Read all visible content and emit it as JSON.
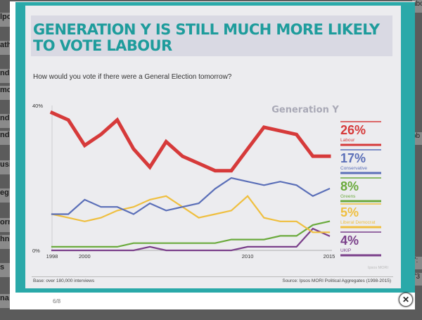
{
  "background": {
    "left_snippets": [
      "lpo",
      "ath",
      "nd",
      "mo",
      "nd",
      "nde",
      "usi",
      "eg",
      "orn",
      "hn",
      "s",
      "na"
    ],
    "right_snippets": [
      "abo",
      "ob",
      "7:",
      "73"
    ]
  },
  "slide": {
    "title_line1": "GENERATION Y IS STILL MUCH MORE LIKELY",
    "title_line2": "TO VOTE LABOUR",
    "question": "How would you vote if there were a General Election tomorrow?",
    "base_note": "Base: over 180,000 interviews",
    "source_note": "Source: Ipsos MORI Political Aggregates (1998-2015)",
    "watermark": "Ipsos MORI",
    "accent_color": "#1e9c9c"
  },
  "chart_data": {
    "type": "line",
    "title": "Generation Y",
    "y_tick_labels": [
      "40%",
      "0%"
    ],
    "x_tick_labels": [
      "1998",
      "2000",
      "2010",
      "2015"
    ],
    "ylim": [
      0,
      40
    ],
    "xlim": [
      1998,
      2015
    ],
    "x": [
      1998,
      1999,
      2000,
      2001,
      2002,
      2003,
      2004,
      2005,
      2006,
      2007,
      2008,
      2009,
      2010,
      2011,
      2012,
      2013,
      2014,
      2015
    ],
    "series": [
      {
        "name": "Labour",
        "value_label": "26%",
        "color": "#d63a3a",
        "values": [
          38,
          36,
          29,
          32,
          36,
          28,
          23,
          30,
          26,
          24,
          22,
          22,
          28,
          34,
          33,
          32,
          26,
          26
        ]
      },
      {
        "name": "Conservative",
        "value_label": "17%",
        "color": "#5b6fb8",
        "values": [
          10,
          10,
          14,
          12,
          12,
          10,
          13,
          11,
          12,
          13,
          17,
          20,
          19,
          18,
          19,
          18,
          15,
          17
        ]
      },
      {
        "name": "Greens",
        "value_label": "8%",
        "color": "#6aaa3c",
        "values": [
          1,
          1,
          1,
          1,
          1,
          2,
          2,
          2,
          2,
          2,
          2,
          3,
          3,
          3,
          4,
          4,
          7,
          8
        ]
      },
      {
        "name": "Liberal Democrat",
        "value_label": "5%",
        "color": "#efbf3f",
        "values": [
          10,
          9,
          8,
          9,
          11,
          12,
          14,
          15,
          12,
          9,
          10,
          11,
          15,
          9,
          8,
          8,
          5,
          5
        ]
      },
      {
        "name": "UKIP",
        "value_label": "4%",
        "color": "#7a3f8a",
        "values": [
          0,
          0,
          0,
          0,
          0,
          0,
          1,
          0,
          0,
          0,
          0,
          0,
          1,
          1,
          1,
          1,
          6,
          4
        ]
      }
    ]
  },
  "ui": {
    "page_counter": "6/8",
    "close_glyph": "✕"
  }
}
